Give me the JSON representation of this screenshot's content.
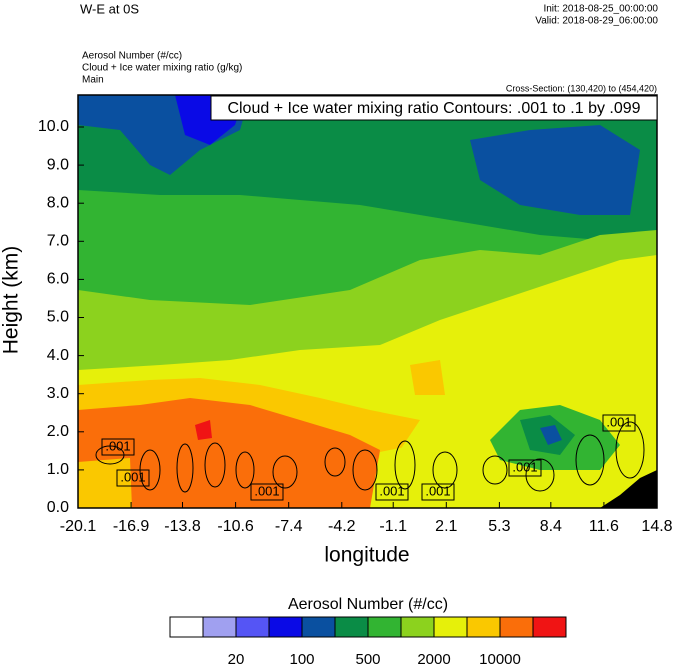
{
  "chart_data": {
    "type": "contour",
    "title": "W-E at 0S",
    "init": "Init: 2018-08-25_00:00:00",
    "valid": "Valid: 2018-08-29_06:00:00",
    "subtitles": [
      "Aerosol Number   (#/cc)",
      "Cloud + Ice water mixing ratio   (g/kg)",
      "Main"
    ],
    "cross_section": "Cross-Section: (130,420) to (454,420)",
    "contour_info": "Cloud + Ice water mixing ratio Contours: .001 to .1 by .099",
    "contour_labels": [
      ".001",
      ".001",
      ".001",
      ".001",
      ".001",
      ".001",
      ".001"
    ],
    "xlabel": "longitude",
    "ylabel": "Height (km)",
    "xlim": [
      -20.1,
      14.8
    ],
    "xticks": [
      -20.1,
      -16.9,
      -13.8,
      -10.6,
      -7.4,
      -4.2,
      -1.1,
      2.1,
      5.3,
      8.4,
      11.6,
      14.8
    ],
    "ylim": [
      0,
      10.84
    ],
    "yticks": [
      {
        "value": 0,
        "label": "0.0"
      },
      {
        "value": 1,
        "label": "1.0"
      },
      {
        "value": 2,
        "label": "2.0"
      },
      {
        "value": 3,
        "label": "3.0"
      },
      {
        "value": 4,
        "label": "4.0"
      },
      {
        "value": 5,
        "label": "5.0"
      },
      {
        "value": 6,
        "label": "6.0"
      },
      {
        "value": 7,
        "label": "7.0"
      },
      {
        "value": 8,
        "label": "8.0"
      },
      {
        "value": 9,
        "label": "9.0"
      },
      {
        "value": 10,
        "label": "10.0"
      }
    ],
    "colorbar": {
      "title": "Aerosol Number  (#/cc)",
      "colors": [
        "#ffffff",
        "#a0a0f0",
        "#5555f5",
        "#0a0ae6",
        "#0a50a0",
        "#0a8c46",
        "#32b432",
        "#8cd21e",
        "#e6f00a",
        "#fac800",
        "#fa6e0a",
        "#f01414"
      ],
      "labels": [
        20,
        100,
        500,
        2000,
        10000
      ]
    }
  }
}
